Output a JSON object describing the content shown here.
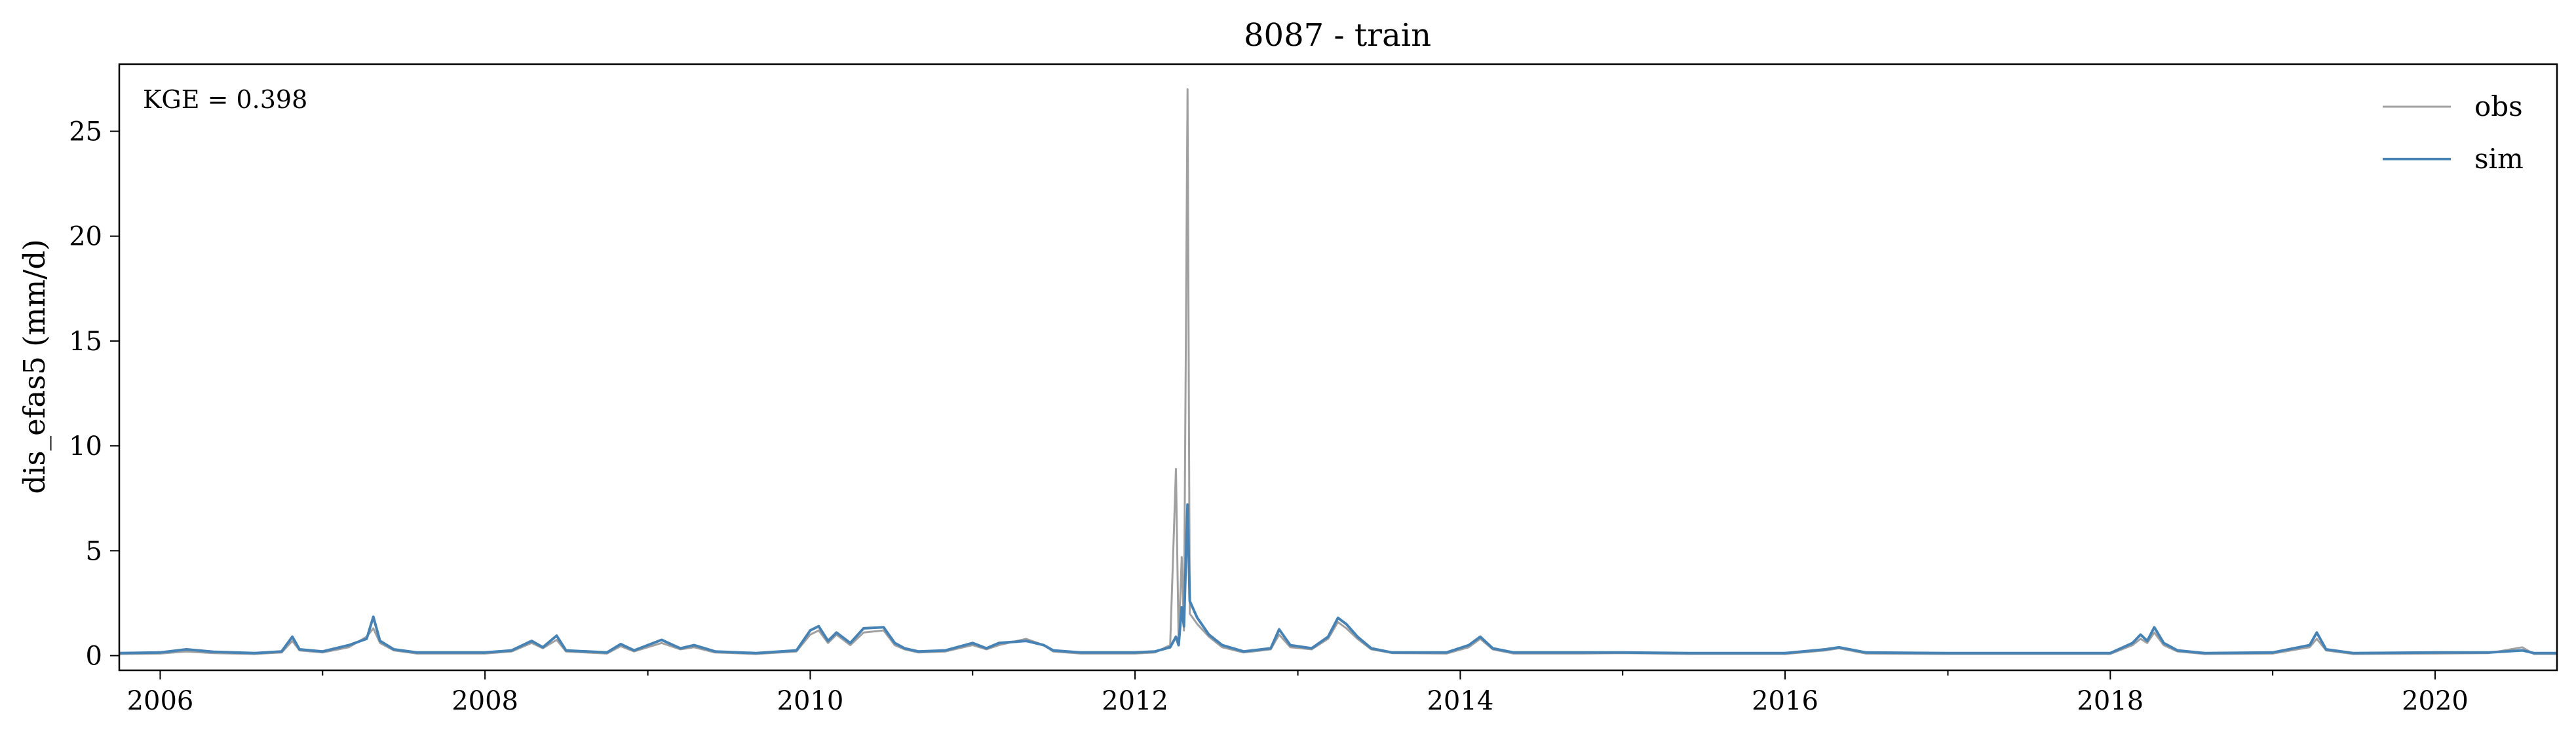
{
  "chart_data": {
    "type": "line",
    "title": "8087 - train",
    "xlabel": "",
    "ylabel": "dis_efas5 (mm/d)",
    "annotation": "KGE = 0.398",
    "xlim": [
      "2005-10-01",
      "2020-10-01"
    ],
    "ylim": [
      -0.7,
      28.2
    ],
    "x_ticks": [
      "2006-01-01",
      "2008-01-01",
      "2010-01-01",
      "2012-01-01",
      "2014-01-01",
      "2016-01-01",
      "2018-01-01",
      "2020-01-01"
    ],
    "x_tick_labels": [
      "2006",
      "2008",
      "2010",
      "2012",
      "2014",
      "2016",
      "2018",
      "2020"
    ],
    "y_ticks": [
      0,
      5,
      10,
      15,
      20,
      25
    ],
    "y_tick_labels": [
      "0",
      "5",
      "10",
      "15",
      "20",
      "25"
    ],
    "grid": false,
    "legend_position": "top-right",
    "series": [
      {
        "name": "obs",
        "color": "#a0a0a0",
        "points": [
          [
            "2005-10-01",
            0.08
          ],
          [
            "2006-01-01",
            0.1
          ],
          [
            "2006-03-01",
            0.2
          ],
          [
            "2006-05-01",
            0.12
          ],
          [
            "2006-08-01",
            0.08
          ],
          [
            "2006-10-01",
            0.15
          ],
          [
            "2006-10-25",
            0.7
          ],
          [
            "2006-11-10",
            0.25
          ],
          [
            "2007-01-01",
            0.15
          ],
          [
            "2007-03-01",
            0.4
          ],
          [
            "2007-04-10",
            0.9
          ],
          [
            "2007-04-25",
            1.3
          ],
          [
            "2007-05-10",
            0.6
          ],
          [
            "2007-06-10",
            0.25
          ],
          [
            "2007-08-01",
            0.1
          ],
          [
            "2008-01-01",
            0.1
          ],
          [
            "2008-03-01",
            0.2
          ],
          [
            "2008-04-15",
            0.6
          ],
          [
            "2008-05-10",
            0.35
          ],
          [
            "2008-06-10",
            0.75
          ],
          [
            "2008-07-01",
            0.2
          ],
          [
            "2008-10-01",
            0.1
          ],
          [
            "2008-11-01",
            0.45
          ],
          [
            "2008-12-01",
            0.2
          ],
          [
            "2009-02-01",
            0.6
          ],
          [
            "2009-03-15",
            0.3
          ],
          [
            "2009-04-15",
            0.4
          ],
          [
            "2009-06-01",
            0.15
          ],
          [
            "2009-09-01",
            0.08
          ],
          [
            "2009-12-01",
            0.2
          ],
          [
            "2010-01-01",
            1.0
          ],
          [
            "2010-01-20",
            1.2
          ],
          [
            "2010-02-10",
            0.6
          ],
          [
            "2010-03-01",
            1.0
          ],
          [
            "2010-04-01",
            0.5
          ],
          [
            "2010-05-01",
            1.1
          ],
          [
            "2010-06-15",
            1.2
          ],
          [
            "2010-07-10",
            0.5
          ],
          [
            "2010-08-01",
            0.3
          ],
          [
            "2010-09-01",
            0.15
          ],
          [
            "2010-11-01",
            0.2
          ],
          [
            "2011-01-01",
            0.5
          ],
          [
            "2011-02-01",
            0.3
          ],
          [
            "2011-03-01",
            0.5
          ],
          [
            "2011-05-01",
            0.8
          ],
          [
            "2011-06-10",
            0.5
          ],
          [
            "2011-07-01",
            0.2
          ],
          [
            "2011-09-01",
            0.1
          ],
          [
            "2012-01-01",
            0.1
          ],
          [
            "2012-02-15",
            0.15
          ],
          [
            "2012-03-20",
            0.5
          ],
          [
            "2012-04-02",
            8.9
          ],
          [
            "2012-04-08",
            0.6
          ],
          [
            "2012-04-15",
            4.7
          ],
          [
            "2012-04-20",
            1.2
          ],
          [
            "2012-04-28",
            27.0
          ],
          [
            "2012-05-03",
            2.0
          ],
          [
            "2012-05-20",
            1.5
          ],
          [
            "2012-06-15",
            0.9
          ],
          [
            "2012-07-15",
            0.4
          ],
          [
            "2012-09-01",
            0.15
          ],
          [
            "2012-11-01",
            0.3
          ],
          [
            "2012-11-20",
            1.0
          ],
          [
            "2012-12-15",
            0.4
          ],
          [
            "2013-02-01",
            0.3
          ],
          [
            "2013-03-10",
            0.8
          ],
          [
            "2013-04-01",
            1.6
          ],
          [
            "2013-04-20",
            1.3
          ],
          [
            "2013-05-15",
            0.8
          ],
          [
            "2013-06-15",
            0.3
          ],
          [
            "2013-08-01",
            0.12
          ],
          [
            "2013-12-01",
            0.1
          ],
          [
            "2014-01-20",
            0.4
          ],
          [
            "2014-02-15",
            0.8
          ],
          [
            "2014-03-15",
            0.3
          ],
          [
            "2014-05-01",
            0.1
          ],
          [
            "2014-10-01",
            0.1
          ],
          [
            "2015-01-01",
            0.12
          ],
          [
            "2015-06-01",
            0.08
          ],
          [
            "2016-01-01",
            0.08
          ],
          [
            "2016-04-01",
            0.25
          ],
          [
            "2016-05-01",
            0.35
          ],
          [
            "2016-07-01",
            0.1
          ],
          [
            "2017-01-01",
            0.08
          ],
          [
            "2017-06-01",
            0.08
          ],
          [
            "2018-01-01",
            0.08
          ],
          [
            "2018-02-20",
            0.5
          ],
          [
            "2018-03-10",
            0.8
          ],
          [
            "2018-03-25",
            0.6
          ],
          [
            "2018-04-10",
            1.1
          ],
          [
            "2018-05-01",
            0.5
          ],
          [
            "2018-06-01",
            0.2
          ],
          [
            "2018-08-01",
            0.08
          ],
          [
            "2019-01-01",
            0.1
          ],
          [
            "2019-03-25",
            0.4
          ],
          [
            "2019-04-10",
            0.8
          ],
          [
            "2019-05-01",
            0.25
          ],
          [
            "2019-07-01",
            0.08
          ],
          [
            "2020-01-01",
            0.1
          ],
          [
            "2020-05-01",
            0.12
          ],
          [
            "2020-07-15",
            0.4
          ],
          [
            "2020-08-10",
            0.08
          ],
          [
            "2020-10-01",
            0.08
          ]
        ]
      },
      {
        "name": "sim",
        "color": "#4682b4",
        "points": [
          [
            "2005-10-01",
            0.12
          ],
          [
            "2006-01-01",
            0.15
          ],
          [
            "2006-03-01",
            0.3
          ],
          [
            "2006-05-01",
            0.18
          ],
          [
            "2006-08-01",
            0.12
          ],
          [
            "2006-10-01",
            0.2
          ],
          [
            "2006-10-25",
            0.9
          ],
          [
            "2006-11-10",
            0.3
          ],
          [
            "2007-01-01",
            0.2
          ],
          [
            "2007-03-01",
            0.5
          ],
          [
            "2007-04-10",
            0.8
          ],
          [
            "2007-04-25",
            1.85
          ],
          [
            "2007-05-10",
            0.7
          ],
          [
            "2007-06-10",
            0.3
          ],
          [
            "2007-08-01",
            0.15
          ],
          [
            "2008-01-01",
            0.15
          ],
          [
            "2008-03-01",
            0.25
          ],
          [
            "2008-04-15",
            0.7
          ],
          [
            "2008-05-10",
            0.4
          ],
          [
            "2008-06-10",
            0.95
          ],
          [
            "2008-07-01",
            0.25
          ],
          [
            "2008-10-01",
            0.15
          ],
          [
            "2008-11-01",
            0.55
          ],
          [
            "2008-12-01",
            0.25
          ],
          [
            "2009-02-01",
            0.75
          ],
          [
            "2009-03-15",
            0.35
          ],
          [
            "2009-04-15",
            0.5
          ],
          [
            "2009-06-01",
            0.2
          ],
          [
            "2009-09-01",
            0.12
          ],
          [
            "2009-12-01",
            0.25
          ],
          [
            "2010-01-01",
            1.2
          ],
          [
            "2010-01-20",
            1.4
          ],
          [
            "2010-02-10",
            0.7
          ],
          [
            "2010-03-01",
            1.1
          ],
          [
            "2010-04-01",
            0.6
          ],
          [
            "2010-05-01",
            1.3
          ],
          [
            "2010-06-15",
            1.35
          ],
          [
            "2010-07-10",
            0.6
          ],
          [
            "2010-08-01",
            0.35
          ],
          [
            "2010-09-01",
            0.2
          ],
          [
            "2010-11-01",
            0.25
          ],
          [
            "2011-01-01",
            0.6
          ],
          [
            "2011-02-01",
            0.35
          ],
          [
            "2011-03-01",
            0.6
          ],
          [
            "2011-05-01",
            0.7
          ],
          [
            "2011-06-10",
            0.5
          ],
          [
            "2011-07-01",
            0.25
          ],
          [
            "2011-09-01",
            0.15
          ],
          [
            "2012-01-01",
            0.15
          ],
          [
            "2012-02-15",
            0.2
          ],
          [
            "2012-03-20",
            0.4
          ],
          [
            "2012-04-02",
            0.9
          ],
          [
            "2012-04-08",
            0.5
          ],
          [
            "2012-04-15",
            2.3
          ],
          [
            "2012-04-20",
            1.4
          ],
          [
            "2012-04-28",
            7.2
          ],
          [
            "2012-05-03",
            2.6
          ],
          [
            "2012-05-20",
            1.8
          ],
          [
            "2012-06-15",
            1.0
          ],
          [
            "2012-07-15",
            0.5
          ],
          [
            "2012-09-01",
            0.2
          ],
          [
            "2012-11-01",
            0.35
          ],
          [
            "2012-11-20",
            1.25
          ],
          [
            "2012-12-15",
            0.5
          ],
          [
            "2013-02-01",
            0.35
          ],
          [
            "2013-03-10",
            0.9
          ],
          [
            "2013-04-01",
            1.8
          ],
          [
            "2013-04-20",
            1.5
          ],
          [
            "2013-05-15",
            0.9
          ],
          [
            "2013-06-15",
            0.35
          ],
          [
            "2013-08-01",
            0.15
          ],
          [
            "2013-12-01",
            0.15
          ],
          [
            "2014-01-20",
            0.5
          ],
          [
            "2014-02-15",
            0.9
          ],
          [
            "2014-03-15",
            0.35
          ],
          [
            "2014-05-01",
            0.15
          ],
          [
            "2014-10-01",
            0.15
          ],
          [
            "2015-01-01",
            0.15
          ],
          [
            "2015-06-01",
            0.12
          ],
          [
            "2016-01-01",
            0.12
          ],
          [
            "2016-04-01",
            0.3
          ],
          [
            "2016-05-01",
            0.4
          ],
          [
            "2016-07-01",
            0.15
          ],
          [
            "2017-01-01",
            0.12
          ],
          [
            "2017-06-01",
            0.12
          ],
          [
            "2018-01-01",
            0.12
          ],
          [
            "2018-02-20",
            0.6
          ],
          [
            "2018-03-10",
            1.0
          ],
          [
            "2018-03-25",
            0.7
          ],
          [
            "2018-04-10",
            1.35
          ],
          [
            "2018-05-01",
            0.6
          ],
          [
            "2018-06-01",
            0.25
          ],
          [
            "2018-08-01",
            0.12
          ],
          [
            "2019-01-01",
            0.15
          ],
          [
            "2019-03-25",
            0.5
          ],
          [
            "2019-04-10",
            1.1
          ],
          [
            "2019-05-01",
            0.3
          ],
          [
            "2019-07-01",
            0.12
          ],
          [
            "2020-01-01",
            0.15
          ],
          [
            "2020-05-01",
            0.15
          ],
          [
            "2020-07-15",
            0.25
          ],
          [
            "2020-08-10",
            0.12
          ],
          [
            "2020-10-01",
            0.12
          ]
        ]
      }
    ]
  }
}
